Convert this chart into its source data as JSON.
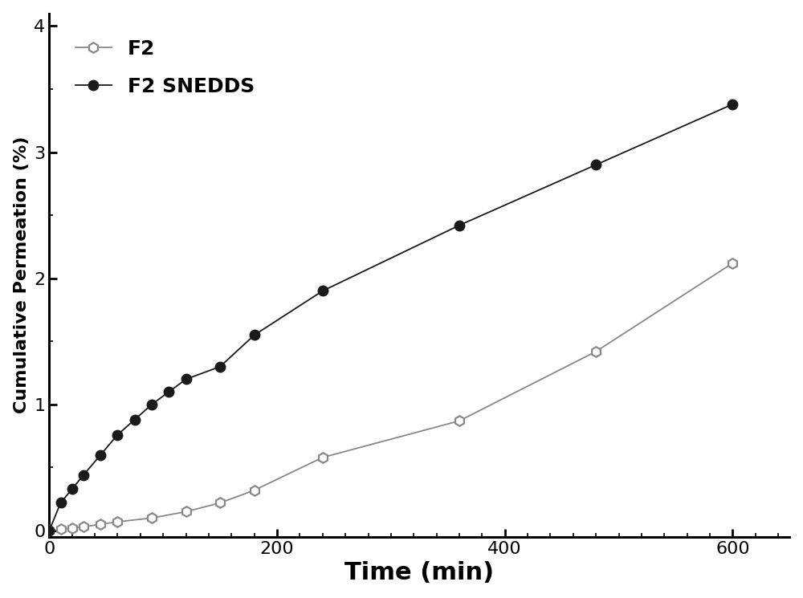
{
  "f2_x": [
    0,
    10,
    20,
    30,
    45,
    60,
    90,
    120,
    150,
    180,
    240,
    360,
    480,
    600
  ],
  "f2_y": [
    0.0,
    0.01,
    0.02,
    0.03,
    0.05,
    0.07,
    0.1,
    0.15,
    0.22,
    0.32,
    0.58,
    0.87,
    1.42,
    2.12
  ],
  "f2_snedds_x": [
    0,
    10,
    20,
    30,
    45,
    60,
    75,
    90,
    105,
    120,
    150,
    180,
    240,
    360,
    480,
    600
  ],
  "f2_snedds_y": [
    0.0,
    0.22,
    0.33,
    0.44,
    0.6,
    0.76,
    0.88,
    1.0,
    1.1,
    1.2,
    1.3,
    1.55,
    1.9,
    2.42,
    2.9,
    3.38
  ],
  "xlabel": "Time (min)",
  "ylabel": "Cumulative Permeation (%)",
  "xlim": [
    0,
    650
  ],
  "ylim": [
    -0.05,
    4.1
  ],
  "xticks": [
    0,
    200,
    400,
    600
  ],
  "yticks": [
    0,
    1,
    2,
    3,
    4
  ],
  "legend_f2": "F2",
  "legend_f2snedds": "F2 SNEDDS",
  "f2_color": "#888888",
  "f2snedds_color": "#1a1a1a",
  "bg_color": "#ffffff",
  "marker_size": 9,
  "linewidth": 1.3,
  "xlabel_fontsize": 22,
  "ylabel_fontsize": 16,
  "tick_fontsize": 16,
  "legend_fontsize": 18
}
